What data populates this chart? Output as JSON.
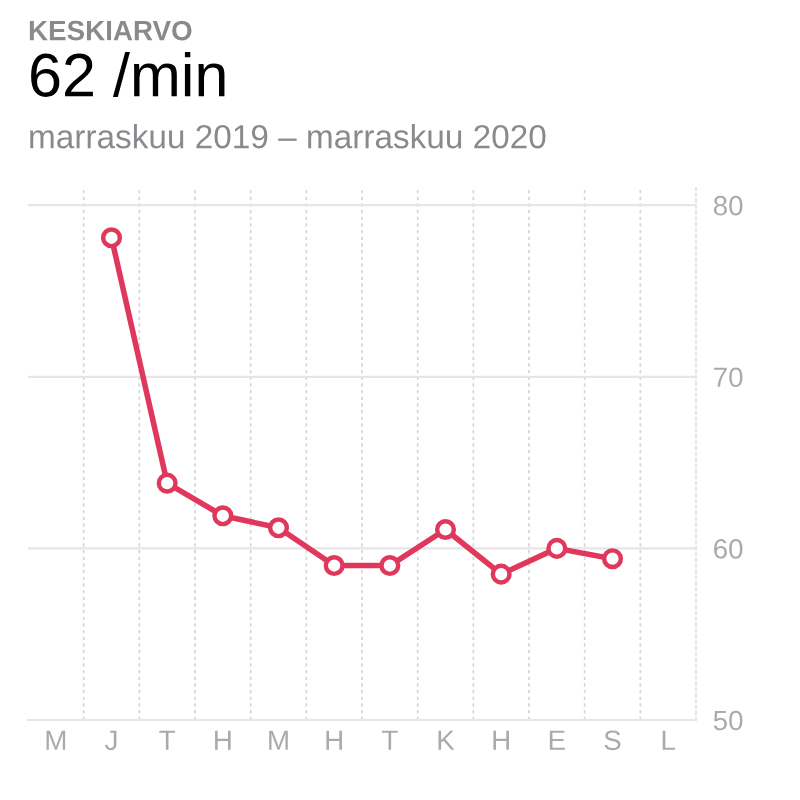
{
  "chart_data": {
    "type": "line",
    "title": "KESKIARVO",
    "subtitle": "62 /min",
    "annotations": [
      "marraskuu 2019 – marraskuu 2020"
    ],
    "categories": [
      "M",
      "J",
      "T",
      "H",
      "M",
      "H",
      "T",
      "K",
      "H",
      "E",
      "S",
      "L"
    ],
    "series": [
      {
        "color": "#e0385c",
        "values": [
          null,
          78.1,
          63.8,
          61.9,
          61.2,
          59.0,
          59.0,
          61.1,
          58.5,
          60.0,
          59.4,
          null
        ]
      }
    ],
    "ylim": [
      50,
      81
    ],
    "yticks": [
      50,
      60,
      70,
      80
    ],
    "grid": true,
    "marker": "circle",
    "line_style": "solid"
  }
}
